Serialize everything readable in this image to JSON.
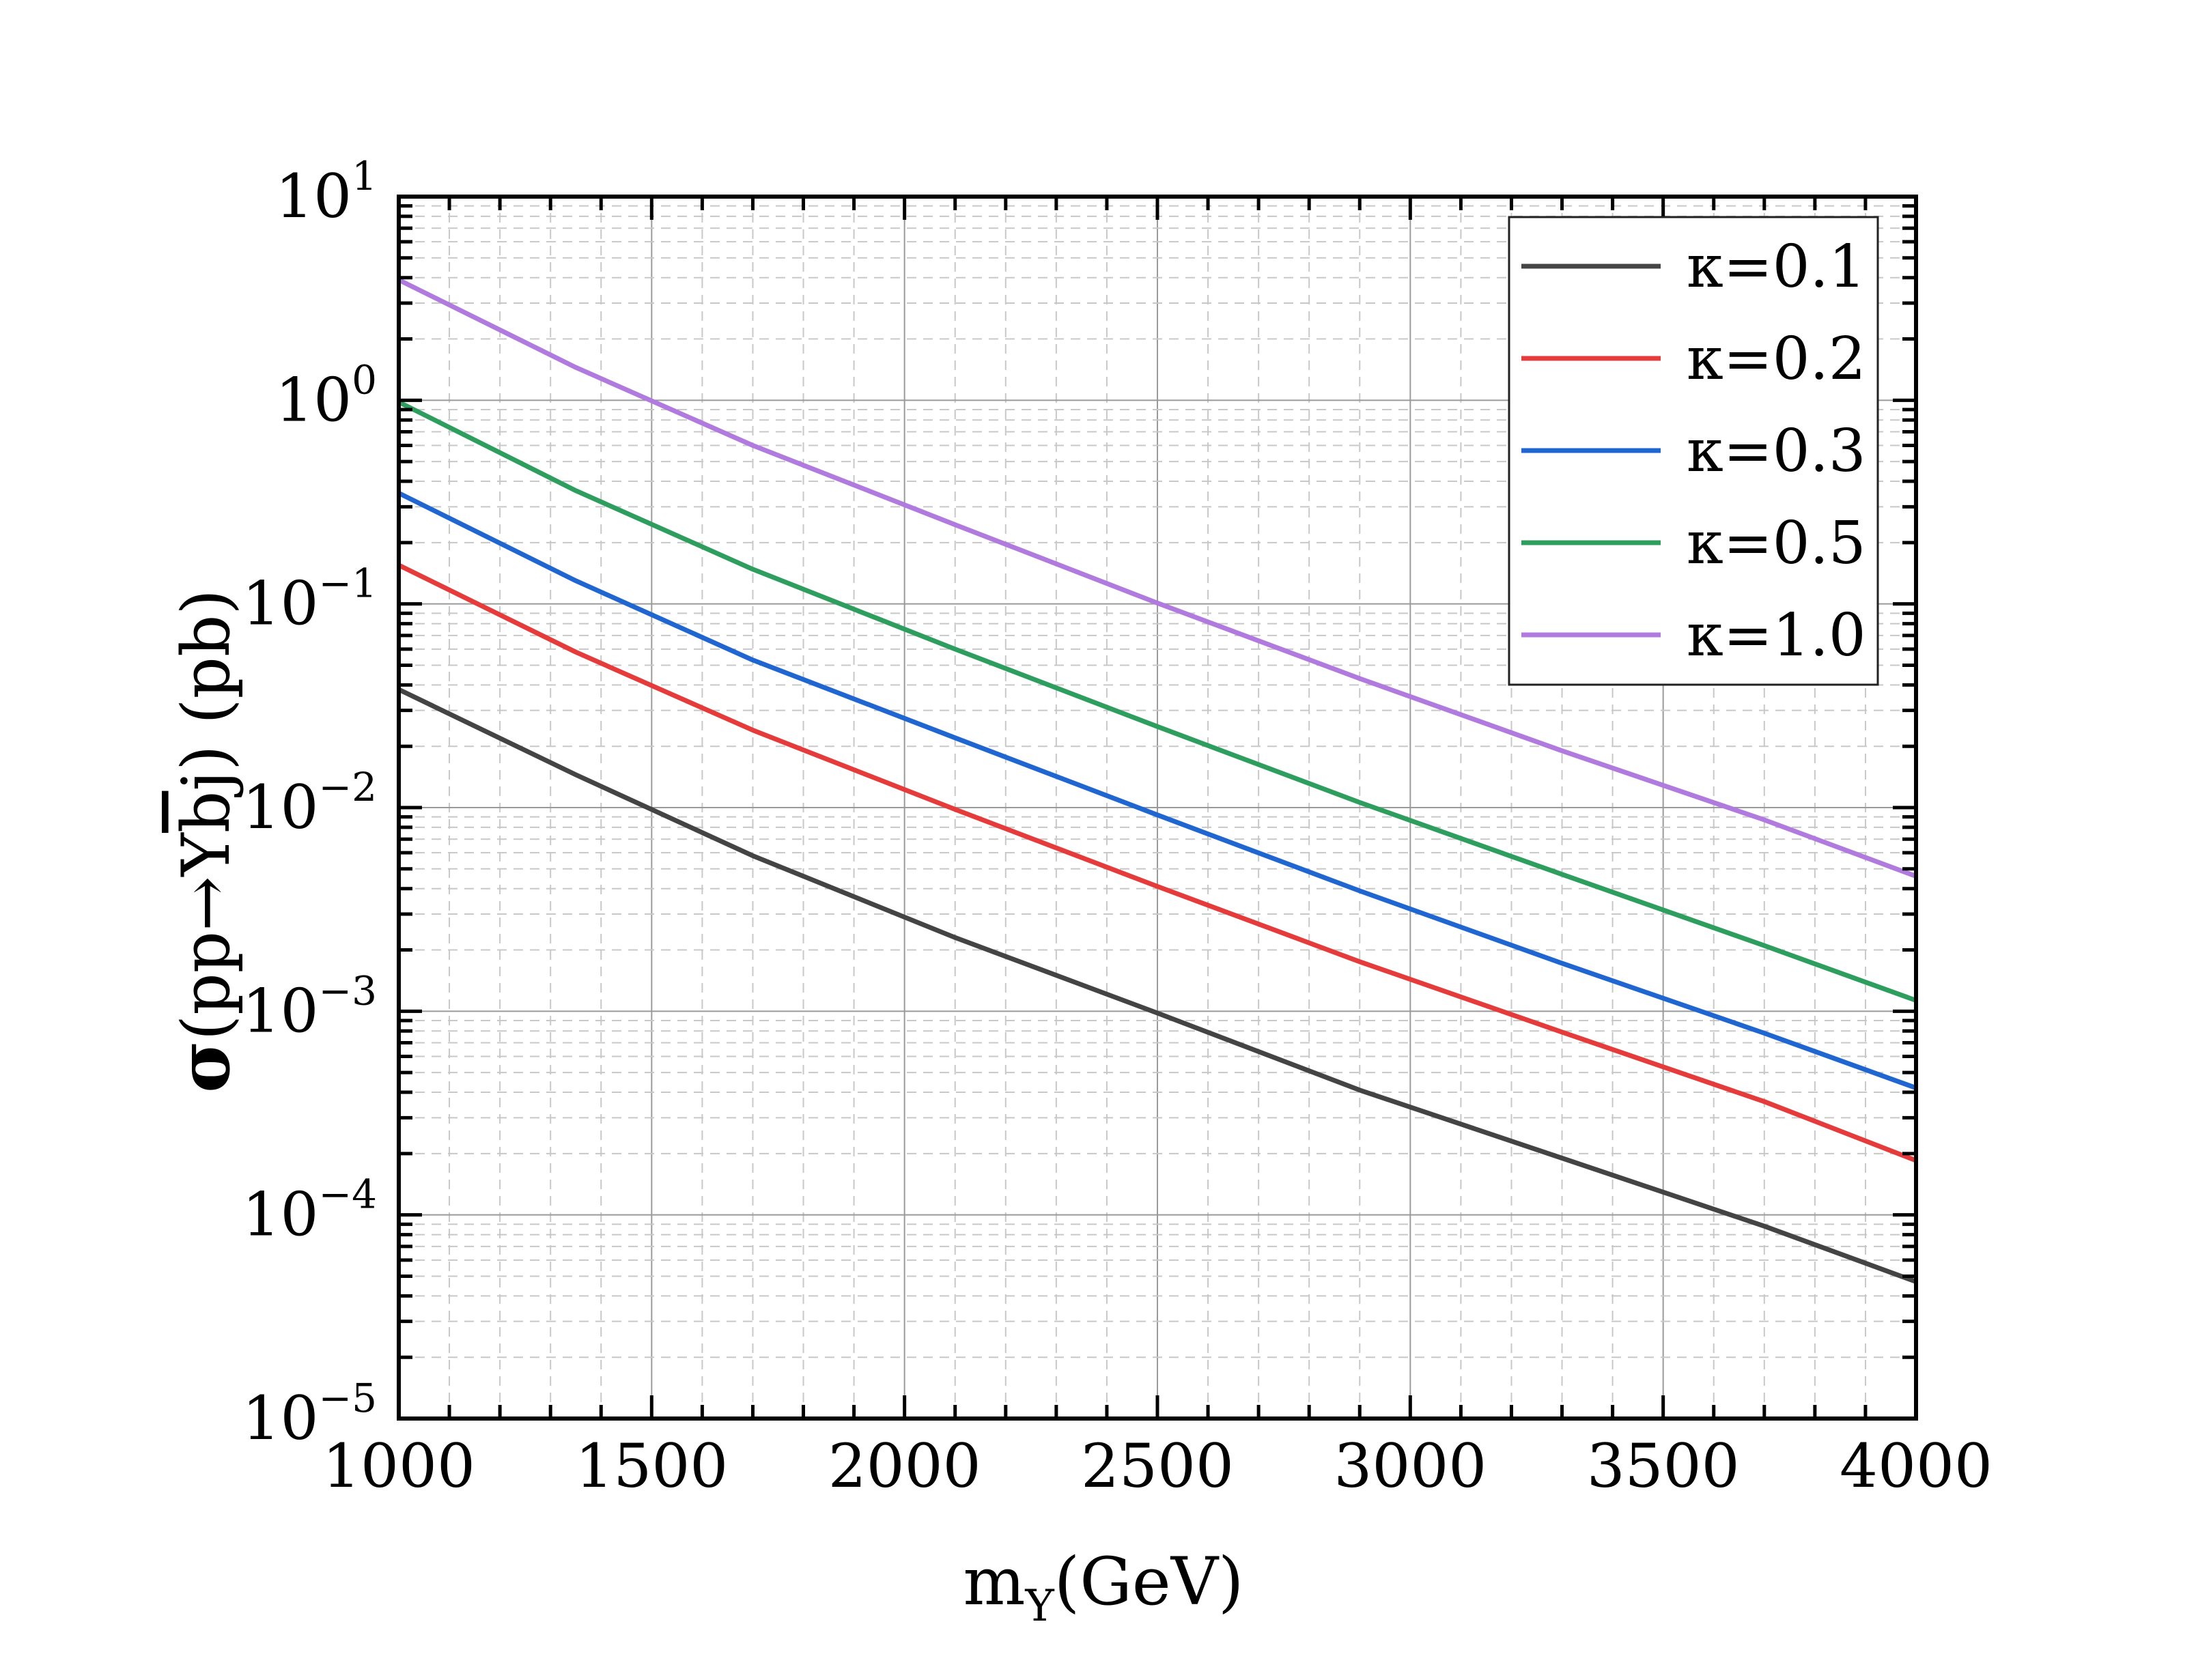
{
  "chart_data": {
    "type": "line",
    "yscale": "log",
    "x": [
      1000,
      1350,
      1700,
      2100,
      2500,
      2900,
      3300,
      3700,
      4000
    ],
    "series": [
      {
        "name": "κ=0.1",
        "color": "#444444",
        "values": [
          0.038,
          0.0145,
          0.0058,
          0.0023,
          0.00098,
          0.00041,
          0.00019,
          8.8e-05,
          4.7e-05
        ]
      },
      {
        "name": "κ=0.2",
        "color": "#e53b3b",
        "values": [
          0.155,
          0.058,
          0.024,
          0.0098,
          0.0041,
          0.00175,
          0.00079,
          0.00036,
          0.000185
        ]
      },
      {
        "name": "κ=0.3",
        "color": "#1f66d1",
        "values": [
          0.35,
          0.13,
          0.053,
          0.022,
          0.0092,
          0.0039,
          0.00172,
          0.00078,
          0.00042
        ]
      },
      {
        "name": "κ=0.5",
        "color": "#2e9e5e",
        "values": [
          0.98,
          0.36,
          0.148,
          0.06,
          0.025,
          0.0106,
          0.0047,
          0.0021,
          0.00113
        ]
      },
      {
        "name": "κ=1.0",
        "color": "#b07ade",
        "values": [
          3.9,
          1.45,
          0.6,
          0.245,
          0.101,
          0.043,
          0.019,
          0.0087,
          0.0046
        ]
      }
    ],
    "xlim": [
      1000,
      4000
    ],
    "ylim": [
      1e-05,
      10
    ],
    "x_ticks": [
      "1000",
      "1500",
      "2000",
      "2500",
      "3000",
      "3500",
      "4000"
    ],
    "y_ticks": [
      {
        "base": "10",
        "exp": "1"
      },
      {
        "base": "10",
        "exp": "0"
      },
      {
        "base": "10",
        "exp": "−1"
      },
      {
        "base": "10",
        "exp": "−2"
      },
      {
        "base": "10",
        "exp": "−3"
      },
      {
        "base": "10",
        "exp": "−4"
      },
      {
        "base": "10",
        "exp": "−5"
      }
    ],
    "xlabel": {
      "main": "m",
      "sub": "Y",
      "rest": "(GeV)"
    },
    "ylabel": {
      "sigma": "σ",
      "open": "(pp→Y",
      "bbar": "b",
      "close": "j) (pb)"
    },
    "legend_position": "top-right",
    "grid": true
  }
}
